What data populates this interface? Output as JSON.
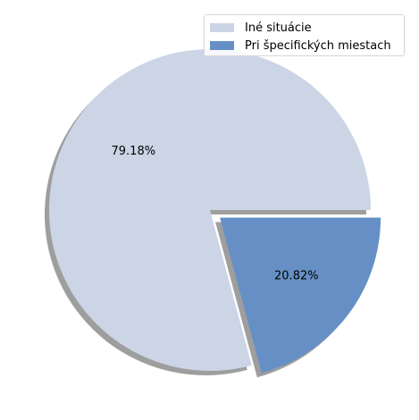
{
  "chart_data": {
    "type": "pie",
    "title": "",
    "slices": [
      {
        "label": "Iné situácie",
        "value": 79.18,
        "display": "79.18%",
        "color": "#ccd5e6",
        "explode": false
      },
      {
        "label": "Pri špecifických miestach",
        "value": 20.82,
        "display": "20.82%",
        "color": "#6690c5",
        "explode": true
      }
    ],
    "legend_position": "top-right",
    "shadow": true
  }
}
